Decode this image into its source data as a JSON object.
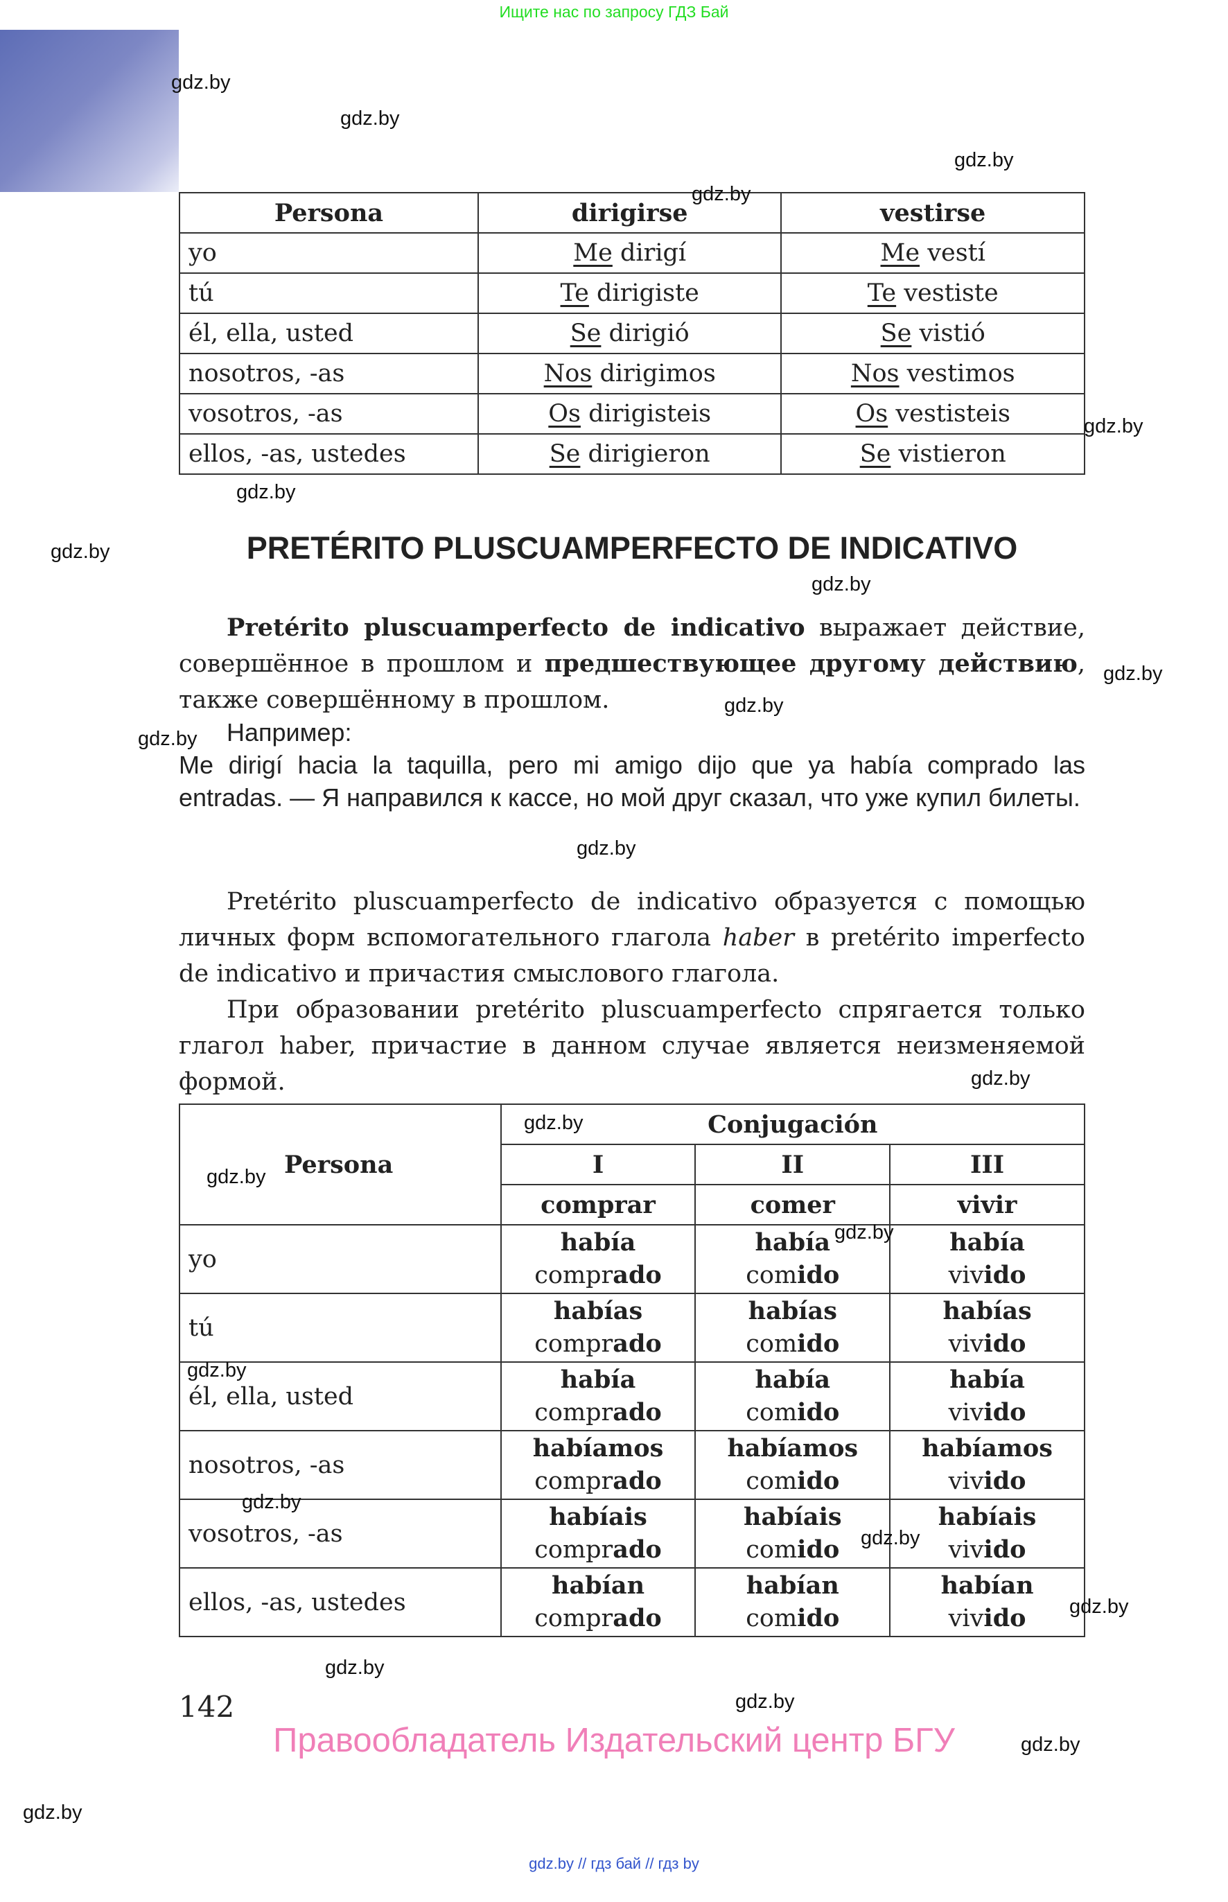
{
  "top_note": "Ищите нас по запросу ГДЗ Бай",
  "table1": {
    "headers": [
      "Persona",
      "dirigirse",
      "vestirse"
    ],
    "rows": [
      {
        "persona": "yo",
        "a": {
          "pron": "Me",
          "verb": "dirigí"
        },
        "b": {
          "pron": "Me",
          "verb": "vestí"
        }
      },
      {
        "persona": "tú",
        "a": {
          "pron": "Te",
          "verb": "dirigiste"
        },
        "b": {
          "pron": "Te",
          "verb": "vestiste"
        }
      },
      {
        "persona": "él, ella, usted",
        "a": {
          "pron": "Se",
          "verb": "dirigió"
        },
        "b": {
          "pron": "Se",
          "verb": "vistió"
        }
      },
      {
        "persona": "nosotros, -as",
        "a": {
          "pron": "Nos",
          "verb": "dirigimos"
        },
        "b": {
          "pron": "Nos",
          "verb": "vestimos"
        }
      },
      {
        "persona": "vosotros, -as",
        "a": {
          "pron": "Os",
          "verb": "dirigisteis"
        },
        "b": {
          "pron": "Os",
          "verb": "vestisteis"
        }
      },
      {
        "persona": "ellos, -as, ustedes",
        "a": {
          "pron": "Se",
          "verb": "dirigieron"
        },
        "b": {
          "pron": "Se",
          "verb": "vistieron"
        }
      }
    ]
  },
  "heading": "PRETÉRITO PLUSCUAMPERFECTO DE INDICATIVO",
  "para1": {
    "bold1": "Pretérito pluscuamperfecto de indicativo",
    "text1": " выражает действие, совершённое в прошлом и ",
    "bold2": "предшествующее другому действию",
    "text2": ", также совершённому в прошлом."
  },
  "example": {
    "label": "Например:",
    "text": "Me dirigí hacia la taquilla, pero mi amigo dijo que ya había comprado las entradas. — Я направился к кассе, но мой друг сказал, что уже купил билеты."
  },
  "para2": {
    "text1": "Pretérito pluscuamperfecto de indicativo образуется с помощью личных форм вспомогательного глагола ",
    "italic": "haber",
    "text2": " в pretérito imperfecto de indicativo и причастия смыслового глагола."
  },
  "para3": "При образовании pretérito pluscuamperfecto спрягается только глагол haber, причастие в данном случае является неизменяемой формой.",
  "table2": {
    "persona_header": "Persona",
    "conj_header": "Conjugación",
    "groups": [
      "I",
      "II",
      "III"
    ],
    "verbs": [
      "comprar",
      "comer",
      "vivir"
    ],
    "rows": [
      {
        "persona": "yo",
        "cells": [
          {
            "aux": "había",
            "stem": "compr",
            "end": "ado"
          },
          {
            "aux": "había",
            "stem": "com",
            "end": "ido"
          },
          {
            "aux": "había",
            "stem": "viv",
            "end": "ido"
          }
        ]
      },
      {
        "persona": "tú",
        "cells": [
          {
            "aux": "habías",
            "stem": "compr",
            "end": "ado"
          },
          {
            "aux": "habías",
            "stem": "com",
            "end": "ido"
          },
          {
            "aux": "habías",
            "stem": "viv",
            "end": "ido"
          }
        ]
      },
      {
        "persona": "él, ella, usted",
        "cells": [
          {
            "aux": "había",
            "stem": "compr",
            "end": "ado"
          },
          {
            "aux": "había",
            "stem": "com",
            "end": "ido"
          },
          {
            "aux": "había",
            "stem": "viv",
            "end": "ido"
          }
        ]
      },
      {
        "persona": "nosotros, -as",
        "cells": [
          {
            "aux": "habíamos",
            "stem": "compr",
            "end": "ado"
          },
          {
            "aux": "habíamos",
            "stem": "com",
            "end": "ido"
          },
          {
            "aux": "habíamos",
            "stem": "viv",
            "end": "ido"
          }
        ]
      },
      {
        "persona": "vosotros, -as",
        "cells": [
          {
            "aux": "habíais",
            "stem": "compr",
            "end": "ado"
          },
          {
            "aux": "habíais",
            "stem": "com",
            "end": "ido"
          },
          {
            "aux": "habíais",
            "stem": "viv",
            "end": "ido"
          }
        ]
      },
      {
        "persona": "ellos, -as, ustedes",
        "cells": [
          {
            "aux": "habían",
            "stem": "compr",
            "end": "ado"
          },
          {
            "aux": "habían",
            "stem": "com",
            "end": "ido"
          },
          {
            "aux": "habían",
            "stem": "viv",
            "end": "ido"
          }
        ]
      }
    ]
  },
  "page_number": "142",
  "rights": "Правообладатель Издательский центр БГУ",
  "footer": "gdz.by  //  гдз бай  //  гдз by",
  "watermark": "gdz.by",
  "colors": {
    "top_note": "#22dd22",
    "rights": "#f07fb8",
    "footer": "#3355cc"
  }
}
